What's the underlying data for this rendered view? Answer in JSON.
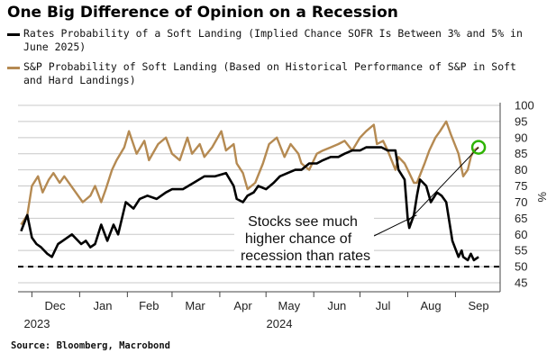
{
  "title": "One Big Difference of Opinion on a Recession",
  "source": "Source: Bloomberg, Macrobond",
  "colors": {
    "rates": "#000000",
    "sp": "#b58a52",
    "marker": "#2db300",
    "grid": "#c8c8c8"
  },
  "chart_data": {
    "type": "line",
    "title": "One Big Difference of Opinion on a Recession",
    "ylabel_right": "%",
    "ylim": [
      45,
      100
    ],
    "yticks": [
      "100",
      "95",
      "90",
      "85",
      "80",
      "75",
      "70",
      "65",
      "60",
      "55",
      "50",
      "45"
    ],
    "month_labels": [
      "Dec",
      "Jan",
      "Feb",
      "Mar",
      "Apr",
      "May",
      "Jun",
      "Jul",
      "Aug",
      "Sep"
    ],
    "year_labels": [
      "2023",
      "2024"
    ],
    "grid": "horizontal",
    "reference_line": {
      "y": 50,
      "style": "dashed"
    },
    "annotation": {
      "lines": [
        "Stocks see much",
        "higher chance of",
        "recession than rates"
      ]
    },
    "series": [
      {
        "name": "Rates Probability of a Soft Landing (Implied Chance SOFR Is Between 3% and 5% in June 2025)",
        "x": [
          "2023-11-24",
          "2023-11-28",
          "2023-12-01",
          "2023-12-04",
          "2023-12-07",
          "2023-12-11",
          "2023-12-14",
          "2023-12-18",
          "2023-12-21",
          "2023-12-27",
          "2024-01-02",
          "2024-01-05",
          "2024-01-08",
          "2024-01-11",
          "2024-01-15",
          "2024-01-19",
          "2024-01-23",
          "2024-01-26",
          "2024-01-31",
          "2024-02-05",
          "2024-02-09",
          "2024-02-14",
          "2024-02-20",
          "2024-02-26",
          "2024-03-01",
          "2024-03-08",
          "2024-03-15",
          "2024-03-22",
          "2024-03-29",
          "2024-04-05",
          "2024-04-10",
          "2024-04-12",
          "2024-04-16",
          "2024-04-19",
          "2024-04-23",
          "2024-04-26",
          "2024-05-01",
          "2024-05-06",
          "2024-05-10",
          "2024-05-15",
          "2024-05-20",
          "2024-05-24",
          "2024-05-29",
          "2024-06-03",
          "2024-06-07",
          "2024-06-12",
          "2024-06-17",
          "2024-06-21",
          "2024-06-26",
          "2024-07-01",
          "2024-07-05",
          "2024-07-10",
          "2024-07-15",
          "2024-07-19",
          "2024-07-22",
          "2024-07-24",
          "2024-07-26",
          "2024-07-30",
          "2024-08-01",
          "2024-08-02",
          "2024-08-05",
          "2024-08-07",
          "2024-08-09",
          "2024-08-13",
          "2024-08-16",
          "2024-08-20",
          "2024-08-23",
          "2024-08-26",
          "2024-08-28",
          "2024-08-30",
          "2024-09-03",
          "2024-09-05",
          "2024-09-06",
          "2024-09-09",
          "2024-09-11",
          "2024-09-13",
          "2024-09-16"
        ],
        "y": [
          61,
          66,
          59,
          57,
          56,
          54,
          53,
          57,
          58,
          60,
          57,
          58,
          56,
          57,
          63,
          58,
          63,
          60,
          70,
          68,
          71,
          72,
          71,
          73,
          74,
          74,
          76,
          78,
          78,
          79,
          75,
          71,
          70,
          72,
          73,
          75,
          74,
          76,
          78,
          79,
          80,
          80,
          82,
          82,
          83,
          84,
          84,
          85,
          86,
          86,
          87,
          87,
          87,
          86,
          86,
          86,
          80,
          77,
          65,
          62,
          66,
          72,
          77,
          75,
          70,
          73,
          72,
          70,
          64,
          58,
          53,
          55,
          53,
          52,
          54,
          52,
          53
        ]
      },
      {
        "name": "S&P Probability of Soft Landing (Based on Historical Performance of S&P in Soft and Hard Landings)",
        "x": [
          "2023-11-24",
          "2023-11-28",
          "2023-12-01",
          "2023-12-05",
          "2023-12-08",
          "2023-12-12",
          "2023-12-15",
          "2023-12-19",
          "2023-12-22",
          "2023-12-28",
          "2024-01-03",
          "2024-01-08",
          "2024-01-11",
          "2024-01-15",
          "2024-01-18",
          "2024-01-22",
          "2024-01-25",
          "2024-01-30",
          "2024-02-02",
          "2024-02-07",
          "2024-02-12",
          "2024-02-15",
          "2024-02-21",
          "2024-02-26",
          "2024-03-01",
          "2024-03-06",
          "2024-03-11",
          "2024-03-14",
          "2024-03-19",
          "2024-03-22",
          "2024-03-27",
          "2024-04-02",
          "2024-04-05",
          "2024-04-10",
          "2024-04-12",
          "2024-04-16",
          "2024-04-19",
          "2024-04-24",
          "2024-04-29",
          "2024-05-03",
          "2024-05-08",
          "2024-05-13",
          "2024-05-17",
          "2024-05-22",
          "2024-05-24",
          "2024-05-29",
          "2024-06-03",
          "2024-06-07",
          "2024-06-12",
          "2024-06-17",
          "2024-06-21",
          "2024-06-26",
          "2024-07-01",
          "2024-07-05",
          "2024-07-10",
          "2024-07-12",
          "2024-07-16",
          "2024-07-19",
          "2024-07-24",
          "2024-07-26",
          "2024-07-30",
          "2024-08-02",
          "2024-08-05",
          "2024-08-07",
          "2024-08-12",
          "2024-08-15",
          "2024-08-19",
          "2024-08-22",
          "2024-08-26",
          "2024-08-29",
          "2024-09-03",
          "2024-09-06",
          "2024-09-09",
          "2024-09-11",
          "2024-09-13",
          "2024-09-16"
        ],
        "y": [
          63,
          66,
          75,
          78,
          73,
          77,
          79,
          76,
          78,
          74,
          70,
          72,
          75,
          70,
          74,
          80,
          83,
          87,
          92,
          85,
          89,
          83,
          88,
          90,
          85,
          83,
          90,
          85,
          88,
          84,
          87,
          92,
          86,
          88,
          82,
          79,
          74,
          76,
          82,
          88,
          90,
          84,
          88,
          85,
          82,
          80,
          85,
          86,
          87,
          88,
          89,
          86,
          90,
          92,
          94,
          88,
          89,
          86,
          80,
          84,
          82,
          79,
          76,
          76,
          82,
          86,
          90,
          92,
          95,
          91,
          85,
          78,
          80,
          84,
          86,
          87
        ]
      }
    ],
    "marker": {
      "series": 1,
      "x": "2024-09-16"
    }
  }
}
